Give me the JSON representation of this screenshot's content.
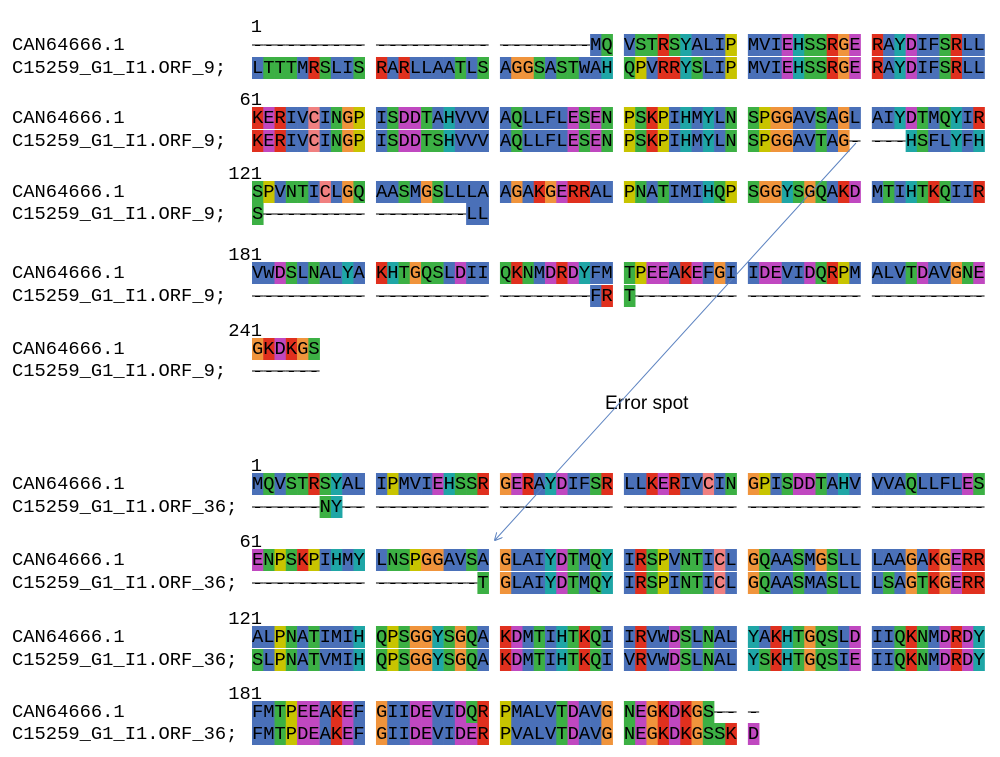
{
  "alignments": [
    {
      "blocks": [
        {
          "start": 1,
          "rows": [
            {
              "name": "CAN64666.1",
              "seq": "---------- ---------- --------MQ VSTRSYALIP MVIEHSSRGE RAYDIFSRLL"
            },
            {
              "name": "C15259_G1_I1.ORF_9;",
              "seq": "LTTTMRSLIS RARLLAATLS AGGSASTWAH QPVRRYSLIP MVIEHSSRGE RAYDIFSRLL"
            }
          ]
        },
        {
          "start": 61,
          "rows": [
            {
              "name": "CAN64666.1",
              "seq": "KERIVCINGP ISDDTAHVVV AQLLFLESEN PSKPIHMYLN SPGGAVSAGL AIYDTMQYIR"
            },
            {
              "name": "C15259_G1_I1.ORF_9;",
              "seq": "KERIVCINGP ISDDTSHVVV AQLLFLESEN PSKPIHMYLN SPGGAVTAG- ---HSFLYFH"
            }
          ]
        },
        {
          "start": 121,
          "rows": [
            {
              "name": "CAN64666.1",
              "seq": "SPVNTICLGQ AASMGSLLLA AGAKGERRAL PNATIMIHQP SGGYSGQAKD MTIHTKQIIR"
            },
            {
              "name": "C15259_G1_I1.ORF_9;",
              "seq": "S--------- --------LL"
            }
          ]
        },
        {
          "start": 181,
          "rows": [
            {
              "name": "CAN64666.1",
              "seq": "VWDSLNALYA KHTGQSLDII QKNMDRDYFM TPEEAKEFGI IDEVIDQRPM ALVTDAVGNE"
            },
            {
              "name": "C15259_G1_I1.ORF_9;",
              "seq": "---------- ---------- --------FR T--------- ---------- ----------"
            }
          ]
        },
        {
          "start": 241,
          "rows": [
            {
              "name": "CAN64666.1",
              "seq": "GKDKGS"
            },
            {
              "name": "C15259_G1_I1.ORF_9;",
              "seq": "------"
            }
          ]
        }
      ]
    },
    {
      "blocks": [
        {
          "start": 1,
          "rows": [
            {
              "name": "CAN64666.1",
              "seq": "MQVSTRSYAL IPMVIEHSSR GERAYDIFSR LLKERIVCIN GPISDDTAHV VVAQLLFLES"
            },
            {
              "name": "C15259_G1_I1.ORF_36;",
              "seq": "------NY-- ---------- ---------- ---------- ---------- ----------"
            }
          ]
        },
        {
          "start": 61,
          "rows": [
            {
              "name": "CAN64666.1",
              "seq": "ENPSKPIHMY LNSPGGAVSA GLAIYDTMQY IRSPVNTICL GQAASMGSLL LAAGAKGERR"
            },
            {
              "name": "C15259_G1_I1.ORF_36;",
              "seq": "---------- ---------T GLAIYDTMQY IRSPINTICL GQAASMASLL LSAGTKGERR"
            }
          ]
        },
        {
          "start": 121,
          "rows": [
            {
              "name": "CAN64666.1",
              "seq": "ALPNATIMIH QPSGGYSGQA KDMTIHTKQI IRVWDSLNAL YAKHTGQSLD IIQKNMDRDY"
            },
            {
              "name": "C15259_G1_I1.ORF_36;",
              "seq": "SLPNATVMIH QPSGGYSGQA KDMTIHTKQI VRVWDSLNAL YSKHTGQSIE IIQKNMDRDY"
            }
          ]
        },
        {
          "start": 181,
          "rows": [
            {
              "name": "CAN64666.1",
              "seq": "FMTPEEAKEF GIIDEVIDQR PMALVTDAVG NEGKDKGS-- -"
            },
            {
              "name": "C15259_G1_I1.ORF_36;",
              "seq": "FMTPDEAKEF GIIDEVIDER PVALVTDAVG NEGKDKGSSK D"
            }
          ]
        }
      ]
    }
  ],
  "annotation": "Error spot"
}
